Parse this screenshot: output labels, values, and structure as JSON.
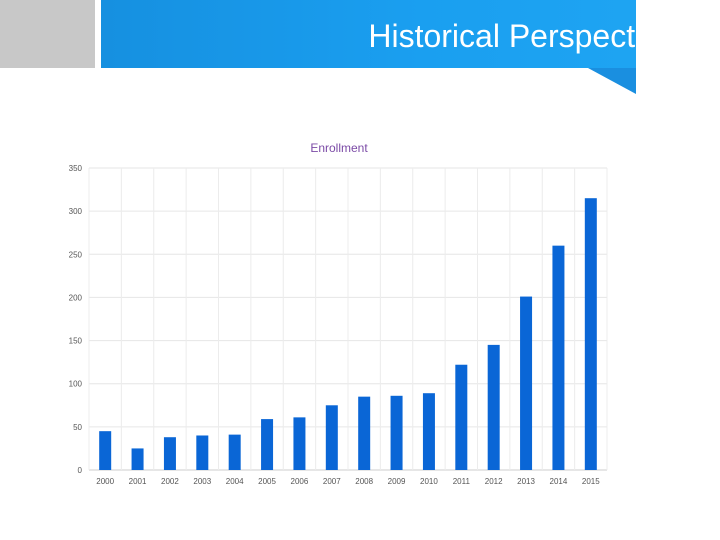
{
  "slide": {
    "title": "Historical Perspective"
  },
  "colors": {
    "header_blue": "#1a9ff0",
    "header_gray": "#c8c8c8",
    "bar": "#0a66d6",
    "chart_title": "#7b4aa6"
  },
  "chart_data": {
    "type": "bar",
    "title": "Enrollment",
    "xlabel": "",
    "ylabel": "",
    "categories": [
      "2000",
      "2001",
      "2002",
      "2003",
      "2004",
      "2005",
      "2006",
      "2007",
      "2008",
      "2009",
      "2010",
      "2011",
      "2012",
      "2013",
      "2014",
      "2015"
    ],
    "values": [
      45,
      25,
      38,
      40,
      41,
      59,
      61,
      75,
      85,
      86,
      89,
      122,
      145,
      201,
      260,
      315
    ],
    "ylim": [
      0,
      350
    ],
    "yticks": [
      "0",
      "50",
      "100",
      "150",
      "200",
      "250",
      "300",
      "350"
    ],
    "grid": true,
    "legend": "none"
  }
}
